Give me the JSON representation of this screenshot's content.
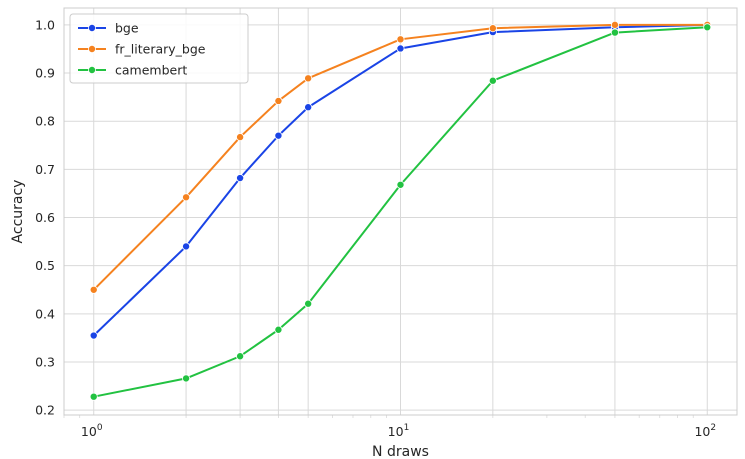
{
  "chart_data": {
    "type": "line",
    "xlabel": "N draws",
    "ylabel": "Accuracy",
    "xscale": "log",
    "xlim": [
      0.8,
      125
    ],
    "ylim": [
      0.19,
      1.035
    ],
    "x_ticks": [
      {
        "value": 1,
        "base": "10",
        "exp": "0"
      },
      {
        "value": 10,
        "base": "10",
        "exp": "1"
      },
      {
        "value": 100,
        "base": "10",
        "exp": "2"
      }
    ],
    "y_ticks": [
      0.2,
      0.3,
      0.4,
      0.5,
      0.6,
      0.7,
      0.8,
      0.9,
      1.0
    ],
    "y_tick_labels": [
      "0.2",
      "0.3",
      "0.4",
      "0.5",
      "0.6",
      "0.7",
      "0.8",
      "0.9",
      "1.0"
    ],
    "grid": true,
    "legend_position": "top-left",
    "x": [
      1,
      2,
      3,
      4,
      5,
      10,
      20,
      50,
      100
    ],
    "series": [
      {
        "name": "bge",
        "color": "#1a44e6",
        "values": [
          0.355,
          0.54,
          0.682,
          0.77,
          0.829,
          0.951,
          0.985,
          0.995,
          1.0
        ]
      },
      {
        "name": "fr_literary_bge",
        "color": "#f5821f",
        "values": [
          0.45,
          0.642,
          0.767,
          0.842,
          0.889,
          0.97,
          0.993,
          1.0,
          1.0
        ]
      },
      {
        "name": "camembert",
        "color": "#22c241",
        "values": [
          0.228,
          0.266,
          0.312,
          0.367,
          0.421,
          0.668,
          0.884,
          0.984,
          0.995
        ]
      }
    ]
  }
}
